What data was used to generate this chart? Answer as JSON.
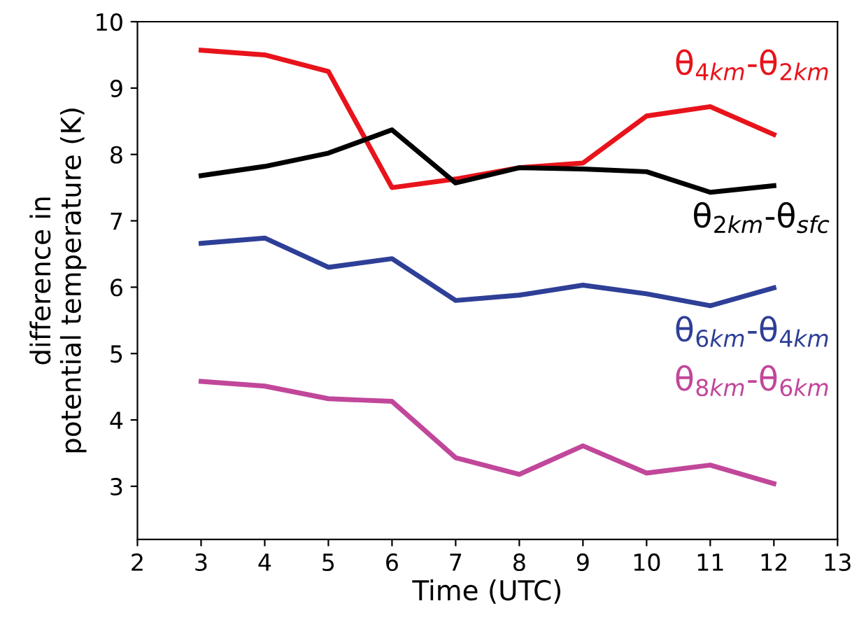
{
  "chart_data": {
    "type": "line",
    "xlabel": "Time (UTC)",
    "ylabel": "difference in\npotential temperature (K)",
    "x": [
      3,
      4,
      5,
      6,
      7,
      8,
      9,
      10,
      11,
      12
    ],
    "xlim": [
      2,
      13
    ],
    "xticks": [
      2,
      3,
      4,
      5,
      6,
      7,
      8,
      9,
      10,
      11,
      12,
      13
    ],
    "ylim": [
      2.2,
      10
    ],
    "yticks": [
      3,
      4,
      5,
      6,
      7,
      8,
      9,
      10
    ],
    "grid": false,
    "legend": false,
    "marker": "none",
    "line_style": "solid",
    "series": [
      {
        "name": "θ$_{4km}$-θ$_{2km}$",
        "color": "#e8131b",
        "values": [
          9.57,
          9.5,
          9.25,
          7.5,
          7.63,
          7.8,
          7.87,
          8.58,
          8.72,
          8.3
        ]
      },
      {
        "name": "θ$_{2km}$-θ$_{sfc}$",
        "color": "#000000",
        "values": [
          7.68,
          7.82,
          8.02,
          8.37,
          7.57,
          7.8,
          7.78,
          7.74,
          7.43,
          7.53
        ]
      },
      {
        "name": "θ$_{6km}$-θ$_{4km}$",
        "color": "#2e3f97",
        "values": [
          6.66,
          6.74,
          6.3,
          6.43,
          5.8,
          5.88,
          6.03,
          5.9,
          5.72,
          5.99
        ]
      },
      {
        "name": "θ$_{8km}$-θ$_{6km}$",
        "color": "#c1479a",
        "values": [
          4.58,
          4.51,
          4.32,
          4.28,
          3.43,
          3.18,
          3.61,
          3.2,
          3.32,
          3.04
        ]
      }
    ]
  }
}
